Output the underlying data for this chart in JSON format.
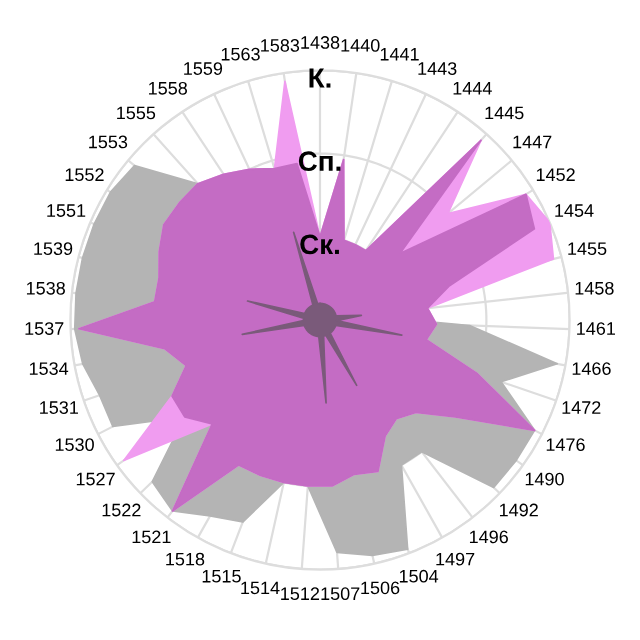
{
  "chart_data": {
    "type": "radar",
    "categories": [
      "1438",
      "1440",
      "1441",
      "1443",
      "1444",
      "1445",
      "1447",
      "1452",
      "1454",
      "1455",
      "1458",
      "1461",
      "1466",
      "1472",
      "1476",
      "1490",
      "1492",
      "1496",
      "1497",
      "1504",
      "1506",
      "1507",
      "1512",
      "1514",
      "1515",
      "1518",
      "1521",
      "1522",
      "1527",
      "1530",
      "1531",
      "1534",
      "1537",
      "1538",
      "1539",
      "1551",
      "1552",
      "1553",
      "1555",
      "1558",
      "1559",
      "1563",
      "1583"
    ],
    "ylim": [
      0,
      3
    ],
    "yticks": [
      {
        "value": 1,
        "label": "Ск."
      },
      {
        "value": 2,
        "label": "Сп."
      },
      {
        "value": 3,
        "label": "К."
      }
    ],
    "grid": true,
    "legend": false,
    "series": [
      {
        "color": "#b4b4b4",
        "values": [
          0.5,
          0.5,
          0.5,
          0.5,
          0.5,
          0.5,
          0.5,
          0.5,
          0.5,
          0.5,
          0.5,
          1.8,
          2.9,
          2.3,
          2.9,
          2.9,
          2.9,
          2.0,
          2.0,
          2.95,
          2.9,
          2.8,
          2.0,
          2.0,
          2.6,
          2.7,
          2.9,
          2.8,
          2.0,
          2.8,
          2.8,
          2.9,
          2.95,
          2.95,
          2.95,
          2.95,
          2.95,
          2.9,
          2.2,
          0.5,
          0.5,
          0.5,
          0.5
        ]
      },
      {
        "color": "#f09cf0",
        "values": [
          1.0,
          1.95,
          1.0,
          1.0,
          1.0,
          2.9,
          2.0,
          2.9,
          3.0,
          2.9,
          1.3,
          1.4,
          1.3,
          2.0,
          2.9,
          2.0,
          1.6,
          1.5,
          1.6,
          1.95,
          1.9,
          2.0,
          2.0,
          2.0,
          2.0,
          2.0,
          2.9,
          1.8,
          2.9,
          2.0,
          1.7,
          1.9,
          2.9,
          2.0,
          2.0,
          2.1,
          2.2,
          2.2,
          2.2,
          2.1,
          2.0,
          1.9,
          2.9
        ]
      },
      {
        "color": "#c46cc4",
        "values": [
          1.0,
          1.95,
          1.0,
          1.0,
          1.0,
          2.9,
          1.25,
          2.9,
          2.8,
          1.6,
          1.3,
          1.4,
          1.3,
          2.0,
          2.9,
          2.0,
          1.6,
          1.5,
          1.6,
          1.95,
          1.9,
          2.0,
          2.0,
          2.0,
          2.0,
          2.0,
          2.9,
          1.8,
          2.0,
          2.0,
          1.7,
          1.9,
          2.9,
          2.0,
          2.0,
          2.1,
          2.2,
          2.2,
          2.2,
          2.1,
          2.0,
          1.9,
          1.9
        ]
      },
      {
        "color": "#7a5a7a",
        "values": [
          0.2,
          0.2,
          0.2,
          0.2,
          0.2,
          0.2,
          0.2,
          0.2,
          0.2,
          0.2,
          0.5,
          0.2,
          1.0,
          0.2,
          0.2,
          0.2,
          0.2,
          0.2,
          0.9,
          0.2,
          0.2,
          1.0,
          0.2,
          0.2,
          0.2,
          0.2,
          0.2,
          0.2,
          0.2,
          0.2,
          0.2,
          0.95,
          0.2,
          0.2,
          0.9,
          0.2,
          0.2,
          0.2,
          0.2,
          0.2,
          0.2,
          1.1,
          0.2
        ]
      }
    ]
  }
}
